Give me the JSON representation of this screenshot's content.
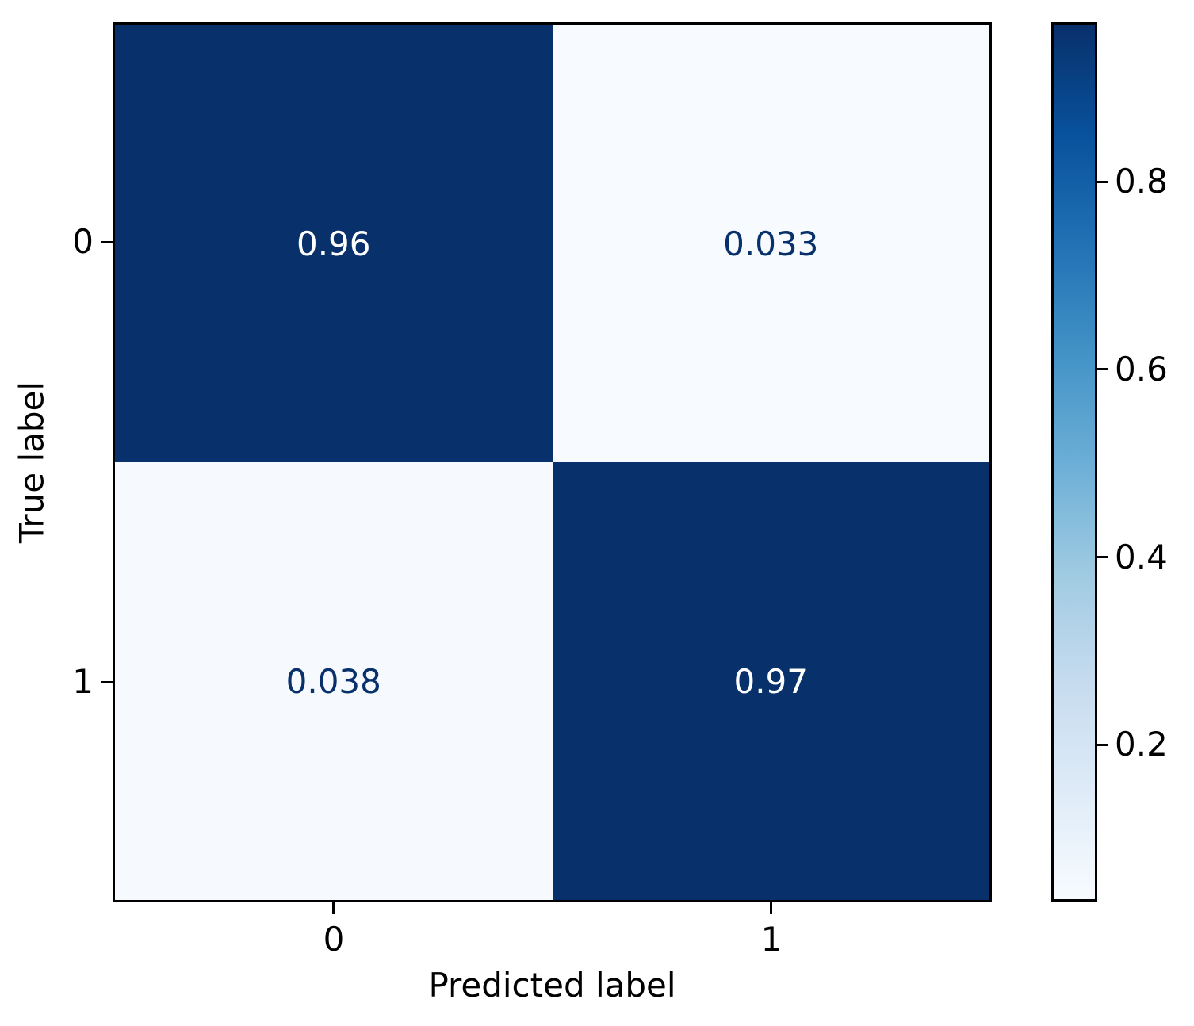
{
  "chart_data": {
    "type": "heatmap",
    "title": "",
    "xlabel": "Predicted label",
    "ylabel": "True label",
    "x_tick_labels": [
      "0",
      "1"
    ],
    "y_tick_labels": [
      "0",
      "1"
    ],
    "values": [
      [
        0.96,
        0.033
      ],
      [
        0.038,
        0.97
      ]
    ],
    "cell_text": [
      [
        "0.96",
        "0.033"
      ],
      [
        "0.038",
        "0.97"
      ]
    ],
    "colormap": "Blues",
    "vmin": 0.033,
    "vmax": 0.97,
    "grid": false,
    "colorbar": {
      "position": "right",
      "tick_values": [
        0.8,
        0.6,
        0.4,
        0.2
      ],
      "tick_labels": [
        "0.8",
        "0.6",
        "0.4",
        "0.2"
      ]
    },
    "colors": {
      "cell_colors": [
        [
          "#08306b",
          "#f7fbff"
        ],
        [
          "#f6fafe",
          "#08306b"
        ]
      ],
      "cell_text_colors": [
        [
          "#ffffff",
          "#08306b"
        ],
        [
          "#08306b",
          "#ffffff"
        ]
      ],
      "gradient_stops_top_to_bottom": [
        "#08306b",
        "#08519c",
        "#2171b5",
        "#4292c6",
        "#6baed6",
        "#9ecae1",
        "#c6dbef",
        "#deebf7",
        "#f7fbff"
      ],
      "spine_color": "#000000",
      "background": "#ffffff"
    }
  }
}
